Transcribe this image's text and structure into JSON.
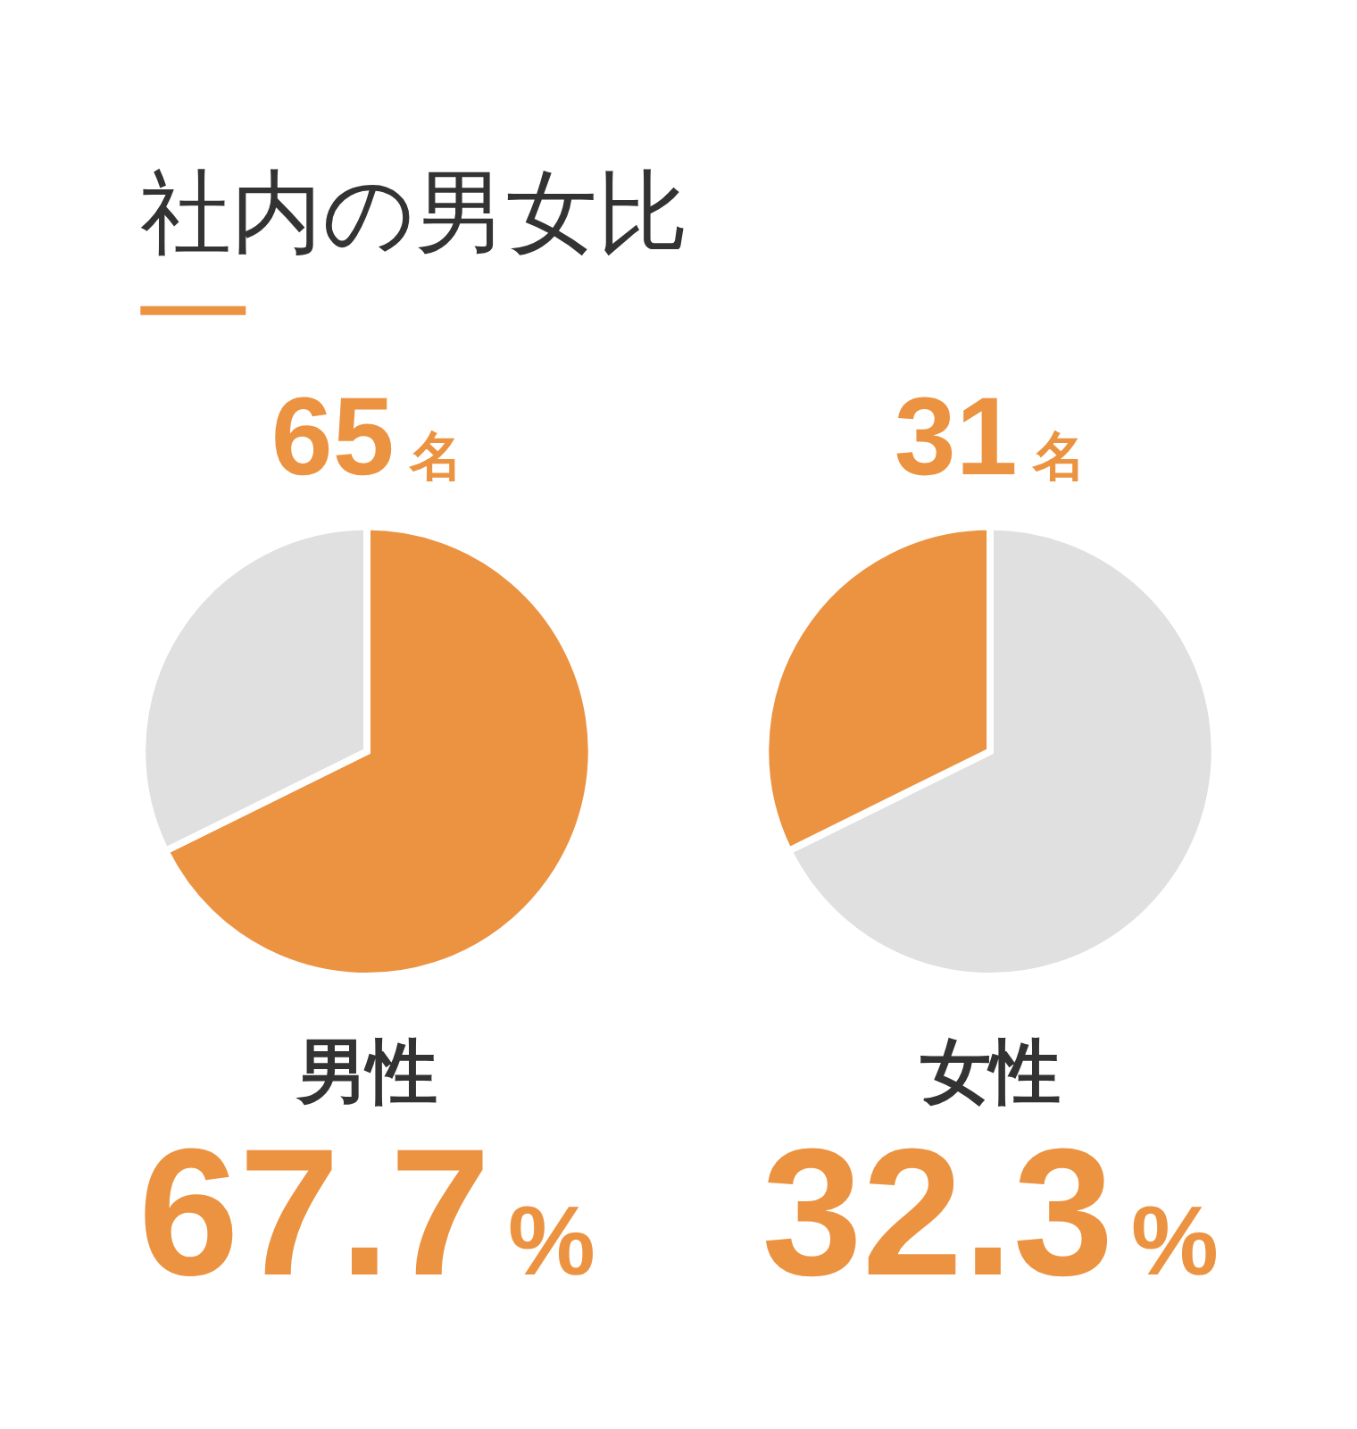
{
  "chart_data": [
    {
      "type": "pie",
      "title": "社内の男女比",
      "categories": [
        null,
        null
      ],
      "values": [
        67.7,
        32.3
      ],
      "colors": [
        "#ec9342",
        "#e0e0e0"
      ],
      "annotations": [
        "65名",
        "男性",
        "67.7%"
      ]
    },
    {
      "type": "pie",
      "categories": [
        null,
        null
      ],
      "values": [
        67.7,
        32.3
      ],
      "colors": [
        "#e0e0e0",
        "#ec9342"
      ],
      "annotations": [
        "31名",
        "女性",
        "32.3%"
      ]
    }
  ]
}
